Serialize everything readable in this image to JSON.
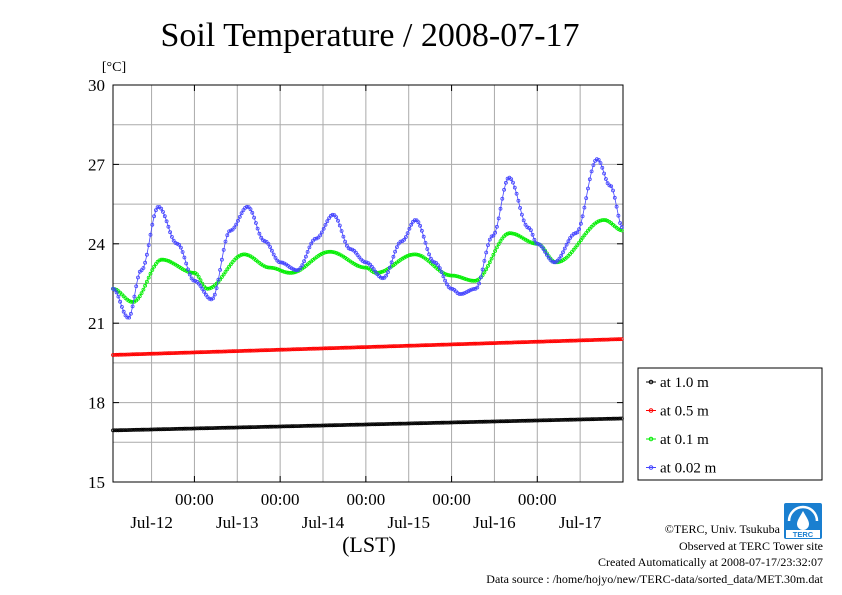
{
  "chart_data": {
    "type": "line",
    "title": "Soil Temperature / 2008-07-17",
    "ylabel": "[°C]",
    "xlabel": "(LST)",
    "ylim": [
      15,
      30
    ],
    "y_ticks": [
      "15",
      "18",
      "21",
      "24",
      "27",
      "30"
    ],
    "x_day_ticks": [
      "00:00",
      "00:00",
      "00:00",
      "00:00",
      "00:00"
    ],
    "x_date_labels": [
      "Jul-12",
      "Jul-13",
      "Jul-14",
      "Jul-15",
      "Jul-16",
      "Jul-17"
    ],
    "x_range_days": [
      -0.95,
      5.0
    ],
    "grid": true,
    "legend_position": "right",
    "series": [
      {
        "name": "at 1.0 m",
        "color": "#000000",
        "start_day": -0.95,
        "step_hours": 0.5,
        "formula": "linear",
        "start_value": 16.95,
        "end_value": 17.4
      },
      {
        "name": "at 0.5 m",
        "color": "#ff0000",
        "start_day": -0.95,
        "step_hours": 0.5,
        "formula": "linear",
        "start_value": 19.8,
        "end_value": 20.4
      },
      {
        "name": "at 0.1 m",
        "color": "#00ee00",
        "start_day": -0.95,
        "step_hours": 0.5,
        "formula": "keypoints",
        "keypoints": [
          [
            -0.95,
            22.3
          ],
          [
            -0.72,
            21.8
          ],
          [
            -0.38,
            23.4
          ],
          [
            0.0,
            22.9
          ],
          [
            0.15,
            22.3
          ],
          [
            0.58,
            23.6
          ],
          [
            0.88,
            23.1
          ],
          [
            1.12,
            22.9
          ],
          [
            1.58,
            23.7
          ],
          [
            2.0,
            23.1
          ],
          [
            2.12,
            22.9
          ],
          [
            2.57,
            23.6
          ],
          [
            3.0,
            22.8
          ],
          [
            3.27,
            22.6
          ],
          [
            3.68,
            24.4
          ],
          [
            4.0,
            24.0
          ],
          [
            4.22,
            23.3
          ],
          [
            4.78,
            24.9
          ],
          [
            5.0,
            24.5
          ]
        ]
      },
      {
        "name": "at 0.02 m",
        "color": "#4444ff",
        "start_day": -0.95,
        "step_hours": 0.5,
        "formula": "keypoints",
        "keypoints": [
          [
            -0.95,
            22.3
          ],
          [
            -0.77,
            21.2
          ],
          [
            -0.62,
            23.0
          ],
          [
            -0.42,
            25.4
          ],
          [
            -0.2,
            24.0
          ],
          [
            0.0,
            22.6
          ],
          [
            0.2,
            21.9
          ],
          [
            0.42,
            24.5
          ],
          [
            0.62,
            25.4
          ],
          [
            0.82,
            24.1
          ],
          [
            1.0,
            23.3
          ],
          [
            1.2,
            23.0
          ],
          [
            1.42,
            24.2
          ],
          [
            1.62,
            25.1
          ],
          [
            1.82,
            23.8
          ],
          [
            2.0,
            23.3
          ],
          [
            2.2,
            22.7
          ],
          [
            2.42,
            24.1
          ],
          [
            2.58,
            24.9
          ],
          [
            2.8,
            23.3
          ],
          [
            3.0,
            22.3
          ],
          [
            3.1,
            22.1
          ],
          [
            3.28,
            22.3
          ],
          [
            3.48,
            24.3
          ],
          [
            3.67,
            26.5
          ],
          [
            3.9,
            24.6
          ],
          [
            4.0,
            24.0
          ],
          [
            4.2,
            23.3
          ],
          [
            4.45,
            24.4
          ],
          [
            4.7,
            27.2
          ],
          [
            4.85,
            26.2
          ],
          [
            5.0,
            24.6
          ]
        ]
      }
    ]
  },
  "footer": {
    "copyright": "©TERC, Univ. Tsukuba",
    "observed": "Observed at TERC Tower site",
    "created": "Created Automatically at 2008-07-17/23:32:07",
    "source": "Data source : /home/hojyo/new/TERC-data/sorted_data/MET.30m.dat",
    "logo_text": "TERC"
  },
  "colors": {
    "logo_blue": "#1a7fd0",
    "grid": "#aaaaaa"
  }
}
